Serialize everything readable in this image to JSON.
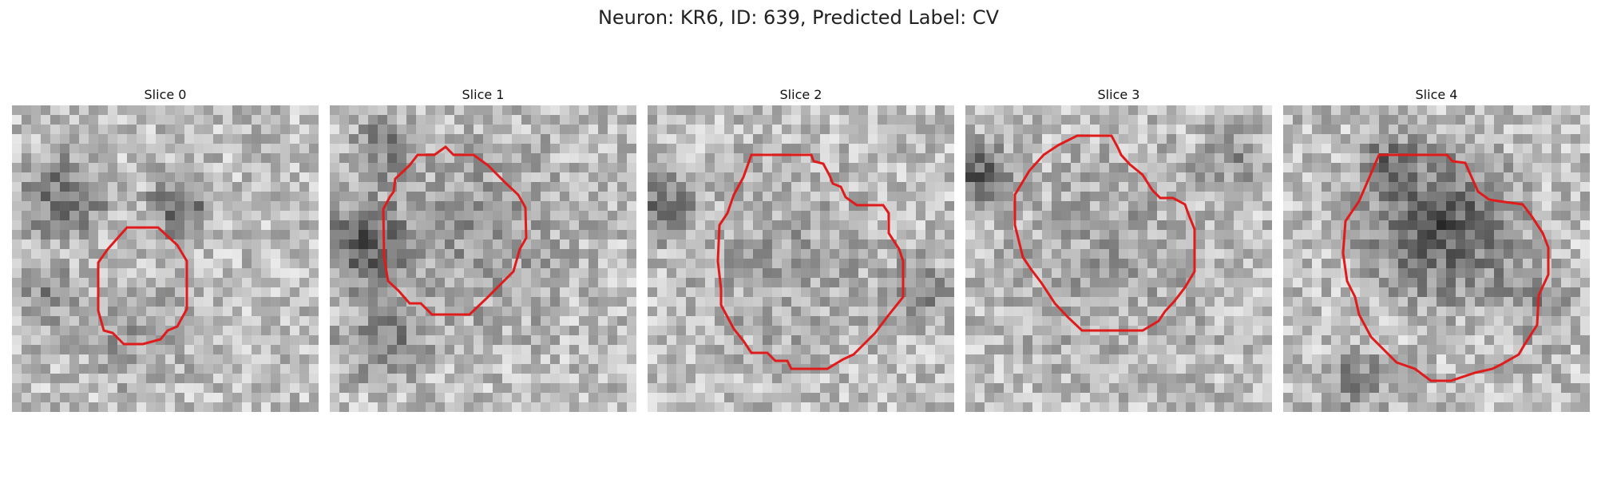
{
  "figure": {
    "title": "Neuron: KR6, ID: 639, Predicted Label: CV"
  },
  "panels": [
    {
      "title": "Slice 0",
      "seed": 11,
      "contour_color": "#e01b1b"
    },
    {
      "title": "Slice 1",
      "seed": 23,
      "contour_color": "#e01b1b"
    },
    {
      "title": "Slice 2",
      "seed": 37,
      "contour_color": "#e01b1b"
    },
    {
      "title": "Slice 3",
      "seed": 51,
      "contour_color": "#e01b1b"
    },
    {
      "title": "Slice 4",
      "seed": 67,
      "contour_color": "#e01b1b"
    }
  ]
}
